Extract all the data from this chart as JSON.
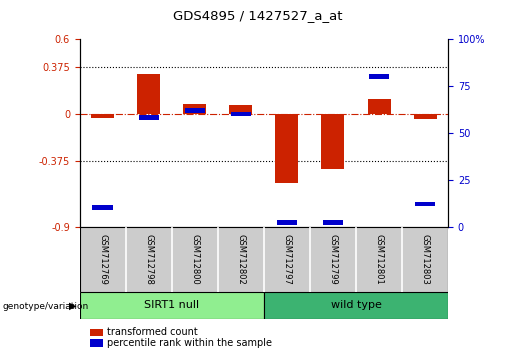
{
  "title": "GDS4895 / 1427527_a_at",
  "samples": [
    "GSM712769",
    "GSM712798",
    "GSM712800",
    "GSM712802",
    "GSM712797",
    "GSM712799",
    "GSM712801",
    "GSM712803"
  ],
  "red_values": [
    -0.03,
    0.32,
    0.08,
    0.07,
    -0.55,
    -0.44,
    0.12,
    -0.04
  ],
  "blue_values_pct": [
    10,
    58,
    62,
    60,
    2,
    2,
    80,
    12
  ],
  "groups": [
    {
      "label": "SIRT1 null",
      "start": 0,
      "end": 4,
      "color": "#90EE90"
    },
    {
      "label": "wild type",
      "start": 4,
      "end": 8,
      "color": "#3CB371"
    }
  ],
  "ylim_left": [
    -0.9,
    0.6
  ],
  "ylim_right": [
    0,
    100
  ],
  "yticks_left": [
    -0.9,
    -0.375,
    0,
    0.375,
    0.6
  ],
  "yticks_right": [
    0,
    25,
    50,
    75,
    100
  ],
  "ytick_labels_left": [
    "-0.9",
    "-0.375",
    "0",
    "0.375",
    "0.6"
  ],
  "ytick_labels_right": [
    "0",
    "25",
    "50",
    "75",
    "100%"
  ],
  "hlines": [
    0.375,
    -0.375
  ],
  "zero_line": 0,
  "red_color": "#CC2200",
  "blue_color": "#0000CC",
  "bar_width": 0.5,
  "bg_color": "#FFFFFF",
  "plot_bg": "#FFFFFF",
  "legend_red": "transformed count",
  "legend_blue": "percentile rank within the sample",
  "genotype_label": "genotype/variation",
  "left_label_color": "#CC2200",
  "right_label_color": "#0000CC",
  "sample_box_color": "#CCCCCC",
  "group1_color": "#AAEEA0",
  "group2_color": "#44CC44"
}
